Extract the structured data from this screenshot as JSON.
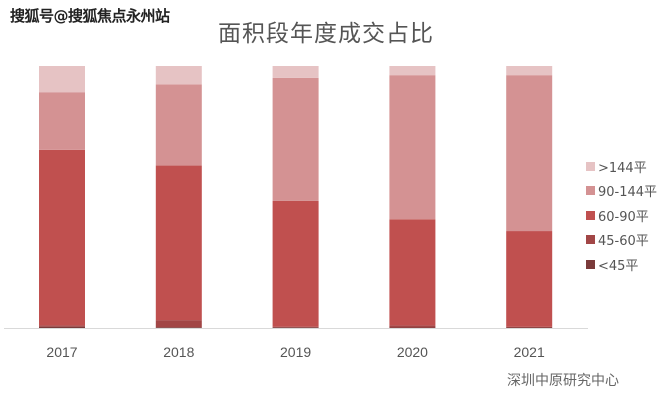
{
  "watermark": "搜狐号@搜狐焦点永州站",
  "source": "深圳中原研究中心",
  "chart_data": {
    "type": "bar",
    "stacked": true,
    "normalized": true,
    "title": "面积段年度成交占比",
    "xlabel": "",
    "ylabel": "",
    "ylim": [
      0,
      100
    ],
    "grid": false,
    "legend_position": "right",
    "categories": [
      "2017",
      "2018",
      "2019",
      "2020",
      "2021"
    ],
    "series": [
      {
        "name": "<45平",
        "color": "#7a3a3a",
        "values": [
          0.5,
          0.3,
          0.3,
          0.2,
          0.2
        ]
      },
      {
        "name": "45-60平",
        "color": "#a24646",
        "values": [
          0.5,
          2.7,
          0.2,
          0.8,
          0.3
        ]
      },
      {
        "name": "60-90平",
        "color": "#c0504f",
        "values": [
          67,
          59,
          48,
          40.5,
          36.5
        ]
      },
      {
        "name": "90-144平",
        "color": "#d49293",
        "values": [
          22,
          31,
          47,
          55,
          59.5
        ]
      },
      {
        "name": ">144平",
        "color": "#e6c3c4",
        "values": [
          10,
          7,
          4.5,
          3.5,
          3.5
        ]
      }
    ]
  }
}
